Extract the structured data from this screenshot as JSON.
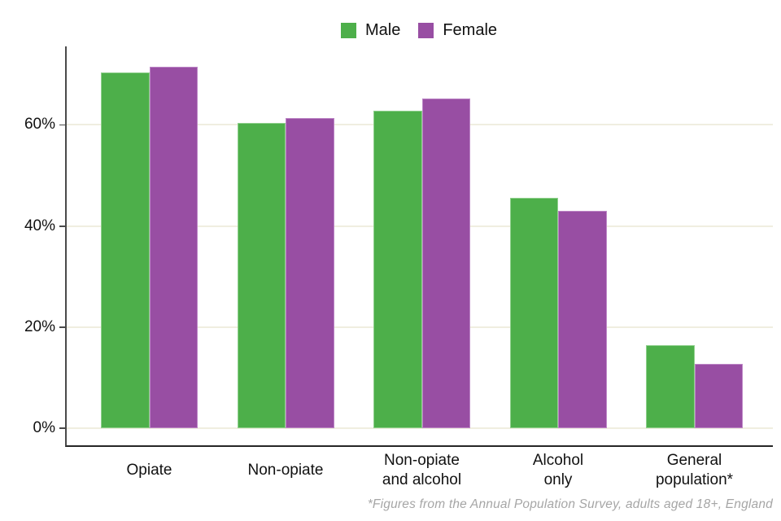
{
  "legend": {
    "items": [
      {
        "label": "Male",
        "color": "#4daf4a"
      },
      {
        "label": "Female",
        "color": "#984ea3"
      }
    ]
  },
  "footnote": "*Figures from the Annual Population Survey, adults aged 18+, England",
  "chart_data": {
    "type": "bar",
    "title": "",
    "categories": [
      [
        "Opiate"
      ],
      [
        "Non-opiate"
      ],
      [
        "Non-opiate",
        "and alcohol"
      ],
      [
        "Alcohol",
        "only"
      ],
      [
        "General",
        "population*"
      ]
    ],
    "series": [
      {
        "name": "Male",
        "color": "#4daf4a",
        "edge_color": "#90d08d",
        "values": [
          70.4,
          60.3,
          62.8,
          45.5,
          16.4
        ]
      },
      {
        "name": "Female",
        "color": "#984ea3",
        "edge_color": "#bd86c6",
        "values": [
          71.5,
          61.3,
          65.2,
          43.0,
          12.7
        ]
      }
    ],
    "xlabel": "",
    "ylabel": "",
    "y_ticks": [
      {
        "label": "0%",
        "value": 0
      },
      {
        "label": "20%",
        "value": 20
      },
      {
        "label": "40%",
        "value": 40
      },
      {
        "label": "60%",
        "value": 60
      }
    ],
    "ylim": [
      0,
      75.5
    ],
    "grid": "horizontal",
    "grid_color": "#f0eee0",
    "axis_color": "#4a4a4a",
    "legend_position": "top-center"
  }
}
